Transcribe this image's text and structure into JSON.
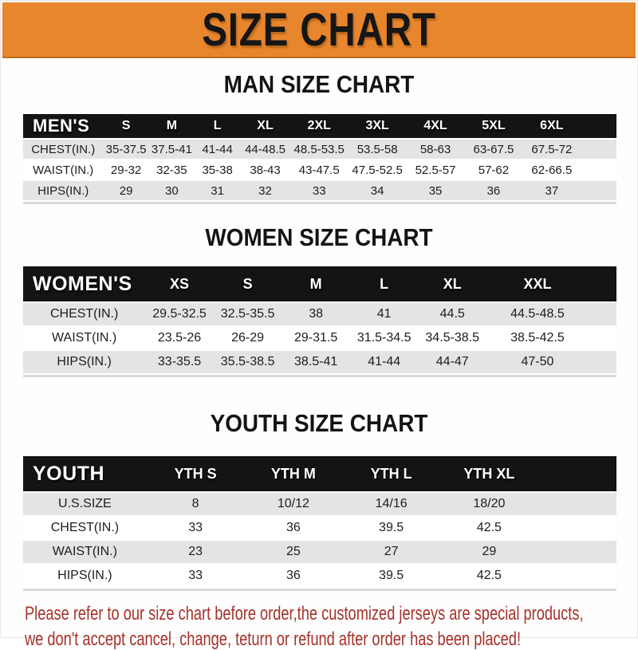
{
  "banner": {
    "title": "SIZE CHART",
    "bg": "#e8862d"
  },
  "sections": [
    {
      "heading": "MAN SIZE CHART",
      "header_label": "MEN'S",
      "columns": [
        "S",
        "M",
        "L",
        "XL",
        "2XL",
        "3XL",
        "4XL",
        "5XL",
        "6XL"
      ],
      "rows": [
        {
          "label": "CHEST(IN.)",
          "values": [
            "35-37.5",
            "37.5-41",
            "41-44",
            "44-48.5",
            "48.5-53.5",
            "53.5-58",
            "58-63",
            "63-67.5",
            "67.5-72"
          ]
        },
        {
          "label": "WAIST(IN.)",
          "values": [
            "29-32",
            "32-35",
            "35-38",
            "38-43",
            "43-47.5",
            "47.5-52.5",
            "52.5-57",
            "57-62",
            "62-66.5"
          ]
        },
        {
          "label": "HIPS(IN.)",
          "values": [
            "29",
            "30",
            "31",
            "32",
            "33",
            "34",
            "35",
            "36",
            "37"
          ]
        }
      ]
    },
    {
      "heading": "WOMEN SIZE CHART",
      "header_label": "WOMEN'S",
      "columns": [
        "XS",
        "S",
        "M",
        "L",
        "XL",
        "XXL"
      ],
      "rows": [
        {
          "label": "CHEST(IN.)",
          "values": [
            "29.5-32.5",
            "32.5-35.5",
            "38",
            "41",
            "44.5",
            "44.5-48.5"
          ]
        },
        {
          "label": "WAIST(IN.)",
          "values": [
            "23.5-26",
            "26-29",
            "29-31.5",
            "31.5-34.5",
            "34.5-38.5",
            "38.5-42.5"
          ]
        },
        {
          "label": "HIPS(IN.)",
          "values": [
            "33-35.5",
            "35.5-38.5",
            "38.5-41",
            "41-44",
            "44-47",
            "47-50"
          ]
        }
      ]
    },
    {
      "heading": "YOUTH SIZE CHART",
      "header_label": "YOUTH",
      "columns": [
        "YTH S",
        "YTH M",
        "YTH L",
        "YTH XL"
      ],
      "rows": [
        {
          "label": "U.S.SIZE",
          "values": [
            "8",
            "10/12",
            "14/16",
            "18/20"
          ]
        },
        {
          "label": "CHEST(IN.)",
          "values": [
            "33",
            "36",
            "39.5",
            "42.5"
          ]
        },
        {
          "label": "WAIST(IN.)",
          "values": [
            "23",
            "25",
            "27",
            "29"
          ]
        },
        {
          "label": "HIPS(IN.)",
          "values": [
            "33",
            "36",
            "39.5",
            "42.5"
          ]
        }
      ]
    }
  ],
  "footer": {
    "line1": "Please refer to our size chart before order,the customized jerseys are special products,",
    "line2": "we don't accept cancel, change, teturn or refund after order has been placed!",
    "color": "#a5322b"
  },
  "colors": {
    "banner_orange": "#e8862d",
    "header_bar_black": "#141414",
    "row_stripe_gray": "#e4e4e4",
    "note_red": "#a5322b"
  }
}
